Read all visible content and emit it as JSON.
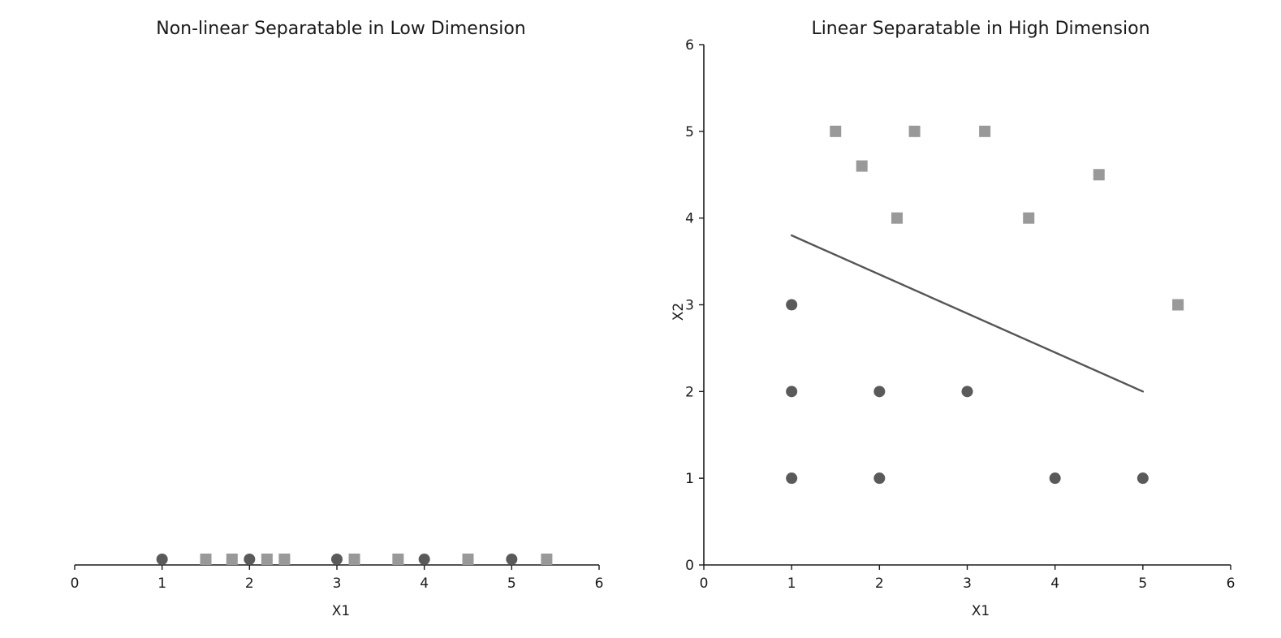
{
  "chart_data": [
    {
      "type": "scatter",
      "title": "Non-linear Separatable in Low Dimension",
      "xlabel": "X1",
      "ylabel": "",
      "xlim": [
        0,
        6
      ],
      "xticks": [
        "0",
        "1",
        "2",
        "3",
        "4",
        "5",
        "6"
      ],
      "yaxis_visible": false,
      "grid": false,
      "series": [
        {
          "marker": "circle",
          "color": "#5a5a5a",
          "x": [
            1,
            2,
            3,
            4,
            5
          ]
        },
        {
          "marker": "square",
          "color": "#999999",
          "x": [
            1.5,
            1.8,
            2.2,
            2.4,
            3.2,
            3.7,
            4.5,
            5.4
          ]
        }
      ]
    },
    {
      "type": "scatter",
      "title": "Linear Separatable in High Dimension",
      "xlabel": "X1",
      "ylabel": "X2",
      "xlim": [
        0,
        6
      ],
      "ylim": [
        0,
        6
      ],
      "xticks": [
        "0",
        "1",
        "2",
        "3",
        "4",
        "5",
        "6"
      ],
      "yticks": [
        "0",
        "1",
        "2",
        "3",
        "4",
        "5",
        "6"
      ],
      "grid": false,
      "series": [
        {
          "marker": "circle",
          "color": "#5a5a5a",
          "points": [
            [
              1,
              1
            ],
            [
              1,
              2
            ],
            [
              1,
              3
            ],
            [
              2,
              1
            ],
            [
              2,
              2
            ],
            [
              3,
              2
            ],
            [
              4,
              1
            ],
            [
              5,
              1
            ]
          ]
        },
        {
          "marker": "square",
          "color": "#999999",
          "points": [
            [
              1.5,
              5
            ],
            [
              1.8,
              4.6
            ],
            [
              2.2,
              4
            ],
            [
              2.4,
              5
            ],
            [
              3.2,
              5
            ],
            [
              3.7,
              4
            ],
            [
              4.5,
              4.5
            ],
            [
              5.4,
              3
            ]
          ]
        }
      ],
      "line": {
        "color": "#555555",
        "points": [
          [
            1,
            3.8
          ],
          [
            5,
            2
          ]
        ]
      }
    }
  ]
}
